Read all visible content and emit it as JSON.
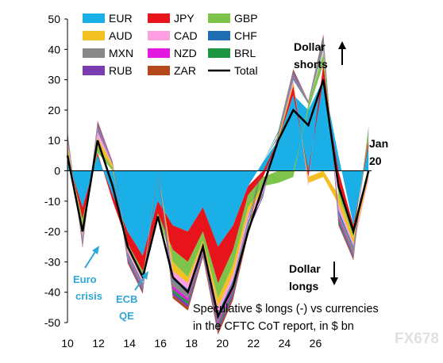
{
  "chart_data": {
    "type": "area",
    "stacked": true,
    "x_ticks": [
      "10",
      "12",
      "14",
      "16",
      "18",
      "20",
      "22",
      "24",
      "26"
    ],
    "y_ticks": [
      50,
      40,
      30,
      20,
      10,
      0,
      -10,
      -20,
      -30,
      -40,
      -50
    ],
    "ylim": [
      -50,
      50
    ],
    "xlim_years": [
      2010,
      2020.1
    ],
    "x": [
      2010.0,
      2010.5,
      2011.0,
      2011.5,
      2012.0,
      2012.5,
      2013.0,
      2013.5,
      2014.0,
      2014.5,
      2015.0,
      2015.5,
      2016.0,
      2016.5,
      2017.0,
      2017.5,
      2018.0,
      2018.5,
      2019.0,
      2019.5,
      2020.0
    ],
    "total": [
      5,
      -20,
      10,
      -5,
      -25,
      -35,
      -15,
      -35,
      -40,
      -25,
      -48,
      -38,
      -20,
      -5,
      10,
      20,
      15,
      30,
      -5,
      -20,
      0
    ],
    "series": [
      {
        "name": "EUR",
        "color": "#1aafe6",
        "values": [
          4,
          -12,
          5,
          -8,
          -20,
          -28,
          -10,
          -18,
          -20,
          -12,
          -25,
          -18,
          -5,
          3,
          10,
          25,
          20,
          30,
          5,
          -18,
          8
        ]
      },
      {
        "name": "JPY",
        "color": "#e8141c",
        "values": [
          2,
          -4,
          1,
          -2,
          -4,
          -5,
          -4,
          -8,
          -10,
          -8,
          -12,
          -8,
          -3,
          -2,
          0,
          3,
          -2,
          5,
          -5,
          -2,
          2
        ]
      },
      {
        "name": "GBP",
        "color": "#7fc44a",
        "values": [
          1,
          -2,
          2,
          1,
          -1,
          -2,
          -1,
          -4,
          -5,
          -3,
          -5,
          -5,
          -4,
          -3,
          -4,
          -2,
          2,
          4,
          -3,
          -2,
          3
        ]
      },
      {
        "name": "AUD",
        "color": "#f2c021",
        "values": [
          2,
          -3,
          3,
          1,
          -1,
          -1,
          0,
          -3,
          -2,
          -1,
          -3,
          -3,
          -2,
          -1,
          1,
          1,
          -2,
          -2,
          -3,
          -2,
          -2
        ]
      },
      {
        "name": "CAD",
        "color": "#ff9ee0",
        "values": [
          1,
          -1,
          2,
          0,
          -1,
          -1,
          0,
          -2,
          -2,
          -1,
          -2,
          -2,
          -2,
          -1,
          0,
          1,
          -1,
          1,
          -2,
          -1,
          -1
        ]
      },
      {
        "name": "CHF",
        "color": "#1f6eb4",
        "values": [
          0.5,
          -0.5,
          0.5,
          0,
          -0.5,
          -0.5,
          0,
          -1,
          -1,
          -0.5,
          -1,
          -0.5,
          -0.5,
          0,
          0.5,
          0.5,
          0,
          0.5,
          -1,
          -0.5,
          0
        ]
      },
      {
        "name": "MXN",
        "color": "#888888",
        "values": [
          0.5,
          -1,
          1,
          0.5,
          -1,
          -1,
          0,
          -2,
          -2,
          -1,
          -2,
          -2,
          -1,
          -1,
          1,
          1,
          1,
          2,
          -1,
          -2,
          1
        ]
      },
      {
        "name": "NZD",
        "color": "#e21adf",
        "values": [
          0.5,
          -0.5,
          0.5,
          0.5,
          -0.5,
          -0.5,
          0,
          -1,
          -1,
          -0.5,
          -1,
          -1,
          -0.5,
          0,
          0,
          0.5,
          0,
          0.5,
          -1,
          -0.5,
          0
        ]
      },
      {
        "name": "BRL",
        "color": "#1e9540",
        "values": [
          0.5,
          -0.5,
          0.5,
          0,
          -0.5,
          -0.5,
          0,
          -1,
          -1,
          -0.5,
          -1,
          -1,
          -1,
          0,
          0.5,
          0.5,
          0,
          1,
          -1,
          -0.5,
          0.5
        ]
      },
      {
        "name": "RUB",
        "color": "#7a3db0",
        "values": [
          0.5,
          -0.5,
          0.5,
          0,
          -0.5,
          -0.5,
          0,
          -1,
          -1,
          -0.5,
          -1,
          -1,
          -1,
          -0.5,
          0,
          0.5,
          0,
          0.5,
          -0.5,
          -0.5,
          0
        ]
      },
      {
        "name": "ZAR",
        "color": "#b5471c",
        "values": [
          0.5,
          -0.5,
          0.5,
          0,
          -0.5,
          -0.5,
          0,
          -1,
          -1,
          -0.5,
          -1,
          -1,
          -1,
          0,
          0,
          0.5,
          0,
          0.5,
          -0.5,
          -0.5,
          0
        ]
      }
    ],
    "total_name": "Total",
    "total_color": "#000000",
    "annotations": {
      "dollar_shorts": [
        "Dollar",
        "shorts"
      ],
      "dollar_longs": [
        "Dollar",
        "longs"
      ],
      "jan": [
        "Jan",
        "20"
      ],
      "euro_crisis": [
        "Euro",
        "crisis"
      ],
      "ecb_qe": [
        "ECB",
        "QE"
      ],
      "footnote": [
        "Speculative $ longs (-) vs currencies",
        "in the CFTC CoT report, in $ bn"
      ]
    },
    "legend_placement": "top-left",
    "watermark": "FX678"
  }
}
